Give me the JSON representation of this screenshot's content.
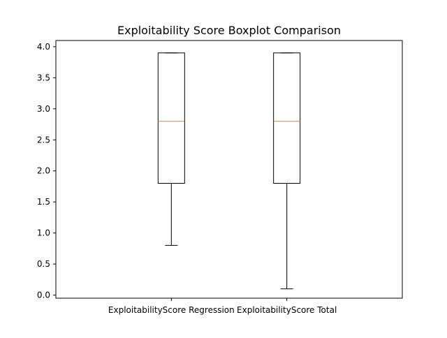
{
  "chart_data": {
    "type": "boxplot",
    "title": "Exploitability Score Boxplot Comparison",
    "xlabel": "",
    "ylabel": "",
    "ylim": [
      -0.05,
      4.1
    ],
    "yticks": [
      0.0,
      0.5,
      1.0,
      1.5,
      2.0,
      2.5,
      3.0,
      3.5,
      4.0
    ],
    "ytick_labels": [
      "0.0",
      "0.5",
      "1.0",
      "1.5",
      "2.0",
      "2.5",
      "3.0",
      "3.5",
      "4.0"
    ],
    "grid": false,
    "categories": [
      "ExploitabilityScore Regression",
      "ExploitabilityScore Total"
    ],
    "boxes": [
      {
        "whisker_low": 0.8,
        "q1": 1.8,
        "median": 2.8,
        "q3": 3.9,
        "whisker_high": 3.9
      },
      {
        "whisker_low": 0.1,
        "q1": 1.8,
        "median": 2.8,
        "q3": 3.9,
        "whisker_high": 3.9
      }
    ],
    "colors": {
      "box": "#000000",
      "median": "#ff7f0e",
      "axes": "#000000"
    }
  }
}
